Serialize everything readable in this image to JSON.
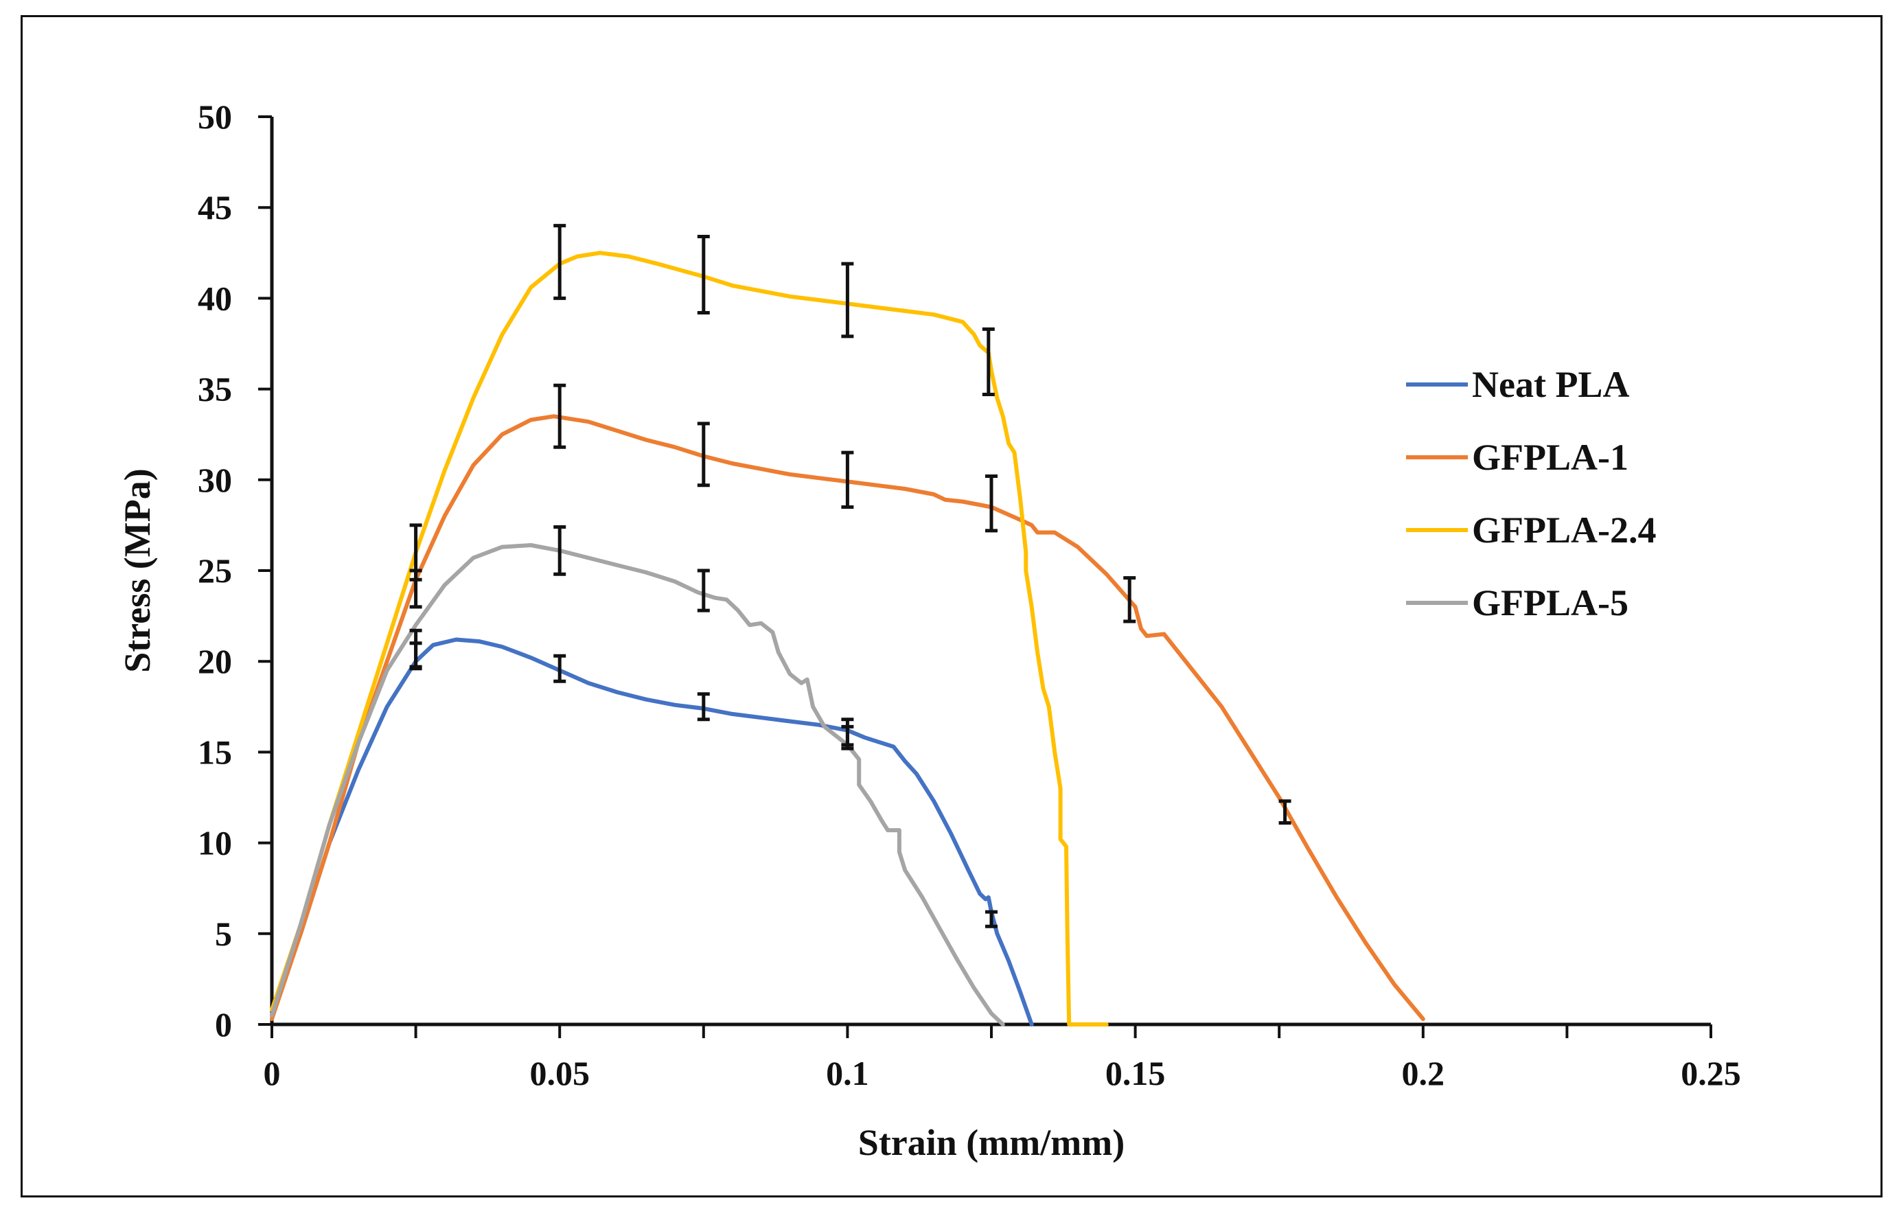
{
  "chart_data": {
    "type": "line",
    "title": "",
    "xlabel": "Strain (mm/mm)",
    "ylabel": "Stress (MPa)",
    "xlim": [
      0,
      0.25
    ],
    "ylim": [
      0,
      50
    ],
    "xticks": [
      0,
      0.05,
      0.1,
      0.15,
      0.2,
      0.25
    ],
    "xtick_labels": [
      "0",
      "0.05",
      "0.1",
      "0.15",
      "0.2",
      "0.25"
    ],
    "yticks": [
      0,
      5,
      10,
      15,
      20,
      25,
      30,
      35,
      40,
      45,
      50
    ],
    "ytick_labels": [
      "0",
      "5",
      "10",
      "15",
      "20",
      "25",
      "30",
      "35",
      "40",
      "45",
      "50"
    ],
    "grid": false,
    "legend_position": "right",
    "series": [
      {
        "name": "Neat PLA",
        "color": "#4472C4",
        "points": [
          [
            0,
            0.5
          ],
          [
            0.005,
            5
          ],
          [
            0.01,
            10
          ],
          [
            0.015,
            14
          ],
          [
            0.02,
            17.5
          ],
          [
            0.025,
            20
          ],
          [
            0.028,
            20.9
          ],
          [
            0.032,
            21.2
          ],
          [
            0.036,
            21.1
          ],
          [
            0.04,
            20.8
          ],
          [
            0.045,
            20.2
          ],
          [
            0.05,
            19.5
          ],
          [
            0.055,
            18.8
          ],
          [
            0.06,
            18.3
          ],
          [
            0.065,
            17.9
          ],
          [
            0.07,
            17.6
          ],
          [
            0.075,
            17.4
          ],
          [
            0.08,
            17.1
          ],
          [
            0.085,
            16.9
          ],
          [
            0.09,
            16.7
          ],
          [
            0.095,
            16.5
          ],
          [
            0.1,
            16.2
          ],
          [
            0.103,
            15.8
          ],
          [
            0.106,
            15.5
          ],
          [
            0.108,
            15.3
          ],
          [
            0.11,
            14.5
          ],
          [
            0.112,
            13.8
          ],
          [
            0.115,
            12.3
          ],
          [
            0.118,
            10.5
          ],
          [
            0.121,
            8.5
          ],
          [
            0.123,
            7.2
          ],
          [
            0.124,
            6.9
          ],
          [
            0.1245,
            7
          ],
          [
            0.125,
            6.2
          ],
          [
            0.126,
            5
          ],
          [
            0.128,
            3.5
          ],
          [
            0.13,
            1.8
          ],
          [
            0.132,
            0
          ]
        ],
        "error_bars": [
          [
            0.025,
            20.3,
            0.7
          ],
          [
            0.05,
            19.6,
            0.7
          ],
          [
            0.075,
            17.5,
            0.7
          ],
          [
            0.1,
            16.1,
            0.7
          ],
          [
            0.125,
            5.8,
            0.4
          ]
        ]
      },
      {
        "name": "GFPLA-1",
        "color": "#ED7D31",
        "points": [
          [
            0,
            0.3
          ],
          [
            0.005,
            5
          ],
          [
            0.01,
            10
          ],
          [
            0.015,
            15.5
          ],
          [
            0.02,
            20
          ],
          [
            0.025,
            24.5
          ],
          [
            0.03,
            28
          ],
          [
            0.035,
            30.8
          ],
          [
            0.04,
            32.5
          ],
          [
            0.045,
            33.3
          ],
          [
            0.049,
            33.5
          ],
          [
            0.055,
            33.2
          ],
          [
            0.06,
            32.7
          ],
          [
            0.065,
            32.2
          ],
          [
            0.07,
            31.8
          ],
          [
            0.075,
            31.3
          ],
          [
            0.08,
            30.9
          ],
          [
            0.085,
            30.6
          ],
          [
            0.09,
            30.3
          ],
          [
            0.095,
            30.1
          ],
          [
            0.1,
            29.9
          ],
          [
            0.105,
            29.7
          ],
          [
            0.11,
            29.5
          ],
          [
            0.115,
            29.2
          ],
          [
            0.117,
            28.9
          ],
          [
            0.12,
            28.8
          ],
          [
            0.125,
            28.5
          ],
          [
            0.13,
            27.8
          ],
          [
            0.132,
            27.5
          ],
          [
            0.133,
            27.1
          ],
          [
            0.136,
            27.1
          ],
          [
            0.14,
            26.3
          ],
          [
            0.145,
            24.8
          ],
          [
            0.15,
            23
          ],
          [
            0.151,
            21.8
          ],
          [
            0.152,
            21.4
          ],
          [
            0.155,
            21.5
          ],
          [
            0.16,
            19.5
          ],
          [
            0.165,
            17.5
          ],
          [
            0.17,
            15
          ],
          [
            0.175,
            12.5
          ],
          [
            0.18,
            9.7
          ],
          [
            0.185,
            7
          ],
          [
            0.19,
            4.5
          ],
          [
            0.195,
            2.2
          ],
          [
            0.2,
            0.3
          ]
        ],
        "error_bars": [
          [
            0.025,
            24,
            1
          ],
          [
            0.05,
            33.5,
            1.7
          ],
          [
            0.075,
            31.4,
            1.7
          ],
          [
            0.1,
            30,
            1.5
          ],
          [
            0.125,
            28.7,
            1.5
          ],
          [
            0.149,
            23.4,
            1.2
          ],
          [
            0.176,
            11.7,
            0.6
          ]
        ]
      },
      {
        "name": "GFPLA-2.4",
        "color": "#FFC000",
        "points": [
          [
            0,
            0.8
          ],
          [
            0.005,
            5.5
          ],
          [
            0.01,
            11
          ],
          [
            0.015,
            16
          ],
          [
            0.02,
            21
          ],
          [
            0.025,
            26
          ],
          [
            0.03,
            30.5
          ],
          [
            0.035,
            34.5
          ],
          [
            0.04,
            38
          ],
          [
            0.045,
            40.6
          ],
          [
            0.05,
            41.9
          ],
          [
            0.053,
            42.3
          ],
          [
            0.057,
            42.5
          ],
          [
            0.062,
            42.3
          ],
          [
            0.067,
            41.9
          ],
          [
            0.075,
            41.2
          ],
          [
            0.08,
            40.7
          ],
          [
            0.085,
            40.4
          ],
          [
            0.09,
            40.1
          ],
          [
            0.095,
            39.9
          ],
          [
            0.1,
            39.7
          ],
          [
            0.105,
            39.5
          ],
          [
            0.11,
            39.3
          ],
          [
            0.115,
            39.1
          ],
          [
            0.12,
            38.7
          ],
          [
            0.122,
            38
          ],
          [
            0.123,
            37.4
          ],
          [
            0.1245,
            37
          ],
          [
            0.125,
            36
          ],
          [
            0.126,
            34.5
          ],
          [
            0.127,
            33.5
          ],
          [
            0.128,
            32
          ],
          [
            0.129,
            31.5
          ],
          [
            0.13,
            29
          ],
          [
            0.131,
            26
          ],
          [
            0.131,
            25
          ],
          [
            0.132,
            23
          ],
          [
            0.133,
            20.5
          ],
          [
            0.134,
            18.5
          ],
          [
            0.135,
            17.5
          ],
          [
            0.136,
            15
          ],
          [
            0.137,
            13
          ],
          [
            0.137,
            10.2
          ],
          [
            0.138,
            9.8
          ],
          [
            0.1382,
            5
          ],
          [
            0.1385,
            0
          ],
          [
            0.145,
            0
          ]
        ],
        "error_bars": [
          [
            0.025,
            26,
            1.5
          ],
          [
            0.05,
            42,
            2
          ],
          [
            0.075,
            41.3,
            2.1
          ],
          [
            0.1,
            39.9,
            2
          ],
          [
            0.1245,
            36.5,
            1.8
          ]
        ]
      },
      {
        "name": "GFPLA-5",
        "color": "#A5A5A5",
        "points": [
          [
            0,
            0.5
          ],
          [
            0.005,
            5.5
          ],
          [
            0.01,
            11
          ],
          [
            0.015,
            15.5
          ],
          [
            0.02,
            19.5
          ],
          [
            0.025,
            22
          ],
          [
            0.03,
            24.2
          ],
          [
            0.035,
            25.7
          ],
          [
            0.04,
            26.3
          ],
          [
            0.045,
            26.4
          ],
          [
            0.05,
            26.1
          ],
          [
            0.055,
            25.7
          ],
          [
            0.06,
            25.3
          ],
          [
            0.065,
            24.9
          ],
          [
            0.07,
            24.4
          ],
          [
            0.074,
            23.8
          ],
          [
            0.077,
            23.5
          ],
          [
            0.079,
            23.4
          ],
          [
            0.081,
            22.8
          ],
          [
            0.083,
            22
          ],
          [
            0.085,
            22.1
          ],
          [
            0.087,
            21.6
          ],
          [
            0.088,
            20.5
          ],
          [
            0.09,
            19.3
          ],
          [
            0.092,
            18.8
          ],
          [
            0.093,
            19
          ],
          [
            0.094,
            17.5
          ],
          [
            0.096,
            16.4
          ],
          [
            0.098,
            15.9
          ],
          [
            0.1,
            15.4
          ],
          [
            0.102,
            14.6
          ],
          [
            0.102,
            13.2
          ],
          [
            0.104,
            12.3
          ],
          [
            0.106,
            11.2
          ],
          [
            0.107,
            10.7
          ],
          [
            0.109,
            10.7
          ],
          [
            0.109,
            9.5
          ],
          [
            0.11,
            8.5
          ],
          [
            0.113,
            7
          ],
          [
            0.116,
            5.3
          ],
          [
            0.119,
            3.6
          ],
          [
            0.122,
            2
          ],
          [
            0.125,
            0.6
          ],
          [
            0.127,
            0
          ]
        ],
        "error_bars": [
          [
            0.025,
            20.7,
            1
          ],
          [
            0.05,
            26.1,
            1.3
          ],
          [
            0.075,
            23.9,
            1.1
          ],
          [
            0.1,
            15.8,
            0.6
          ]
        ]
      }
    ]
  }
}
